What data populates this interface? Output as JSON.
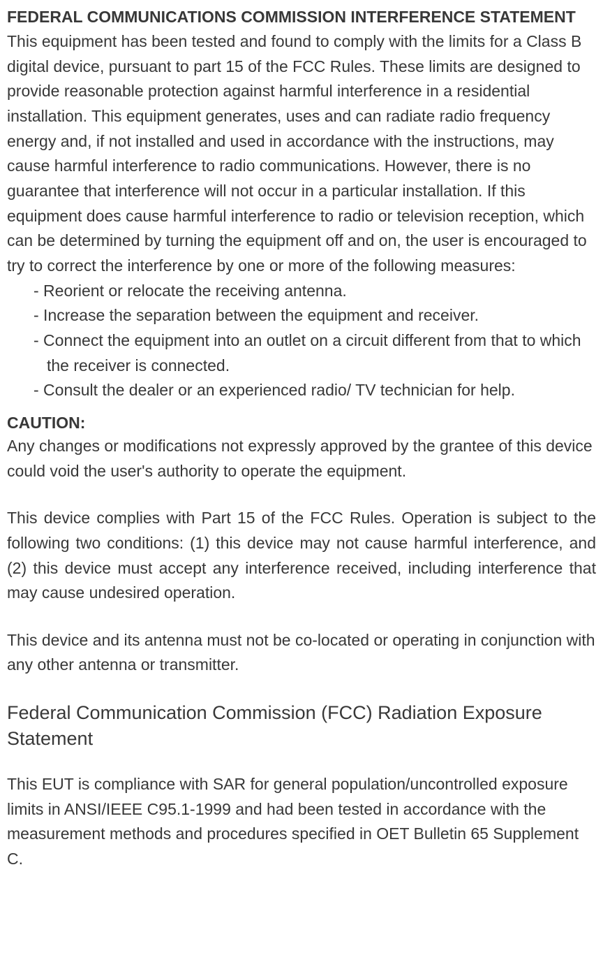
{
  "section1": {
    "heading": "FEDERAL COMMUNICATIONS COMMISSION INTERFERENCE STATEMENT",
    "paragraph": "This equipment has been tested and found to comply with the limits for a Class B digital device, pursuant to part 15 of the FCC Rules. These limits are designed to provide reasonable protection against harmful interference in a residential installation. This equipment generates, uses and can radiate radio frequency energy and, if not installed and used in accordance with the instructions, may cause harmful interference to radio communications. However, there is no guarantee that interference will not occur in a particular installation. If this equipment does cause harmful interference to radio or television reception, which can be determined by turning the equipment off and on, the user is encouraged to try to correct the interference by one or more of the following measures:",
    "bullets": [
      "- Reorient or relocate the receiving antenna.",
      "- Increase the separation between the equipment and receiver.",
      "- Connect the equipment into an outlet on a circuit different from that to which the receiver is connected.",
      "- Consult the dealer or an experienced radio/ TV technician for help."
    ]
  },
  "caution": {
    "heading": "CAUTION:",
    "paragraph": "Any changes or modifications not expressly approved by the grantee of this device could void the user's authority to operate the equipment."
  },
  "compliance": {
    "paragraph1": "This device complies with Part 15 of the FCC Rules. Operation is subject to the following two conditions: (1) this device may not cause harmful interference, and (2) this device must accept any interference received, including interference that may cause undesired operation.",
    "paragraph2": "This device and its antenna must not be co-located or operating in conjunction with any other antenna or transmitter."
  },
  "radiation": {
    "heading": "Federal Communication Commission (FCC) Radiation Exposure Statement",
    "paragraph": "This EUT is compliance with SAR for general population/uncontrolled exposure limits in ANSI/IEEE C95.1-1999 and had been tested in accordance with the measurement methods and procedures specified in OET Bulletin 65 Supplement C."
  },
  "colors": {
    "text": "#383838",
    "background": "#ffffff"
  },
  "typography": {
    "body_fontsize": 23,
    "radiation_heading_fontsize": 27,
    "line_height": 1.55
  }
}
